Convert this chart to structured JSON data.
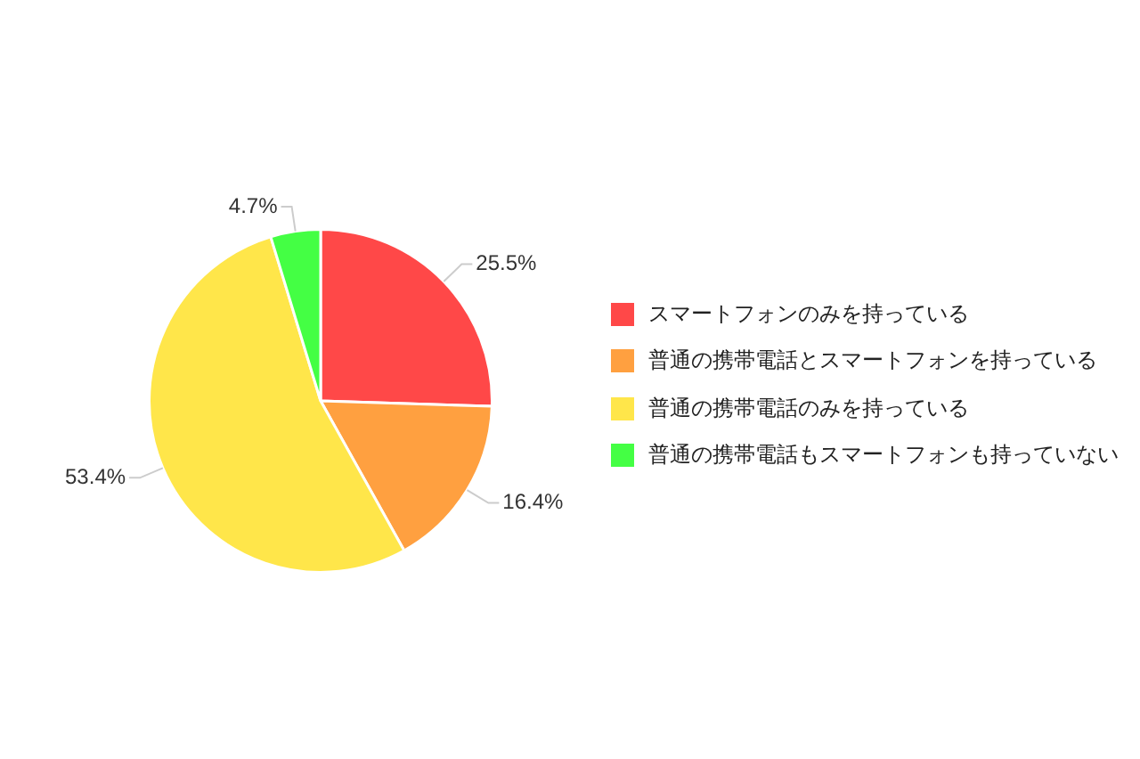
{
  "chart_data": {
    "type": "pie",
    "categories": [
      "スマートフォンのみを持っている",
      "普通の携帯電話とスマートフォンを持っている",
      "普通の携帯電話のみを持っている",
      "普通の携帯電話もスマートフォンも持っていない"
    ],
    "values": [
      25.5,
      16.4,
      53.4,
      4.7
    ],
    "colors": [
      "#ff4848",
      "#ffa040",
      "#ffe64a",
      "#44ff44"
    ],
    "value_labels": [
      "25.5%",
      "16.4%",
      "53.4%",
      "4.7%"
    ],
    "legend": "right"
  }
}
